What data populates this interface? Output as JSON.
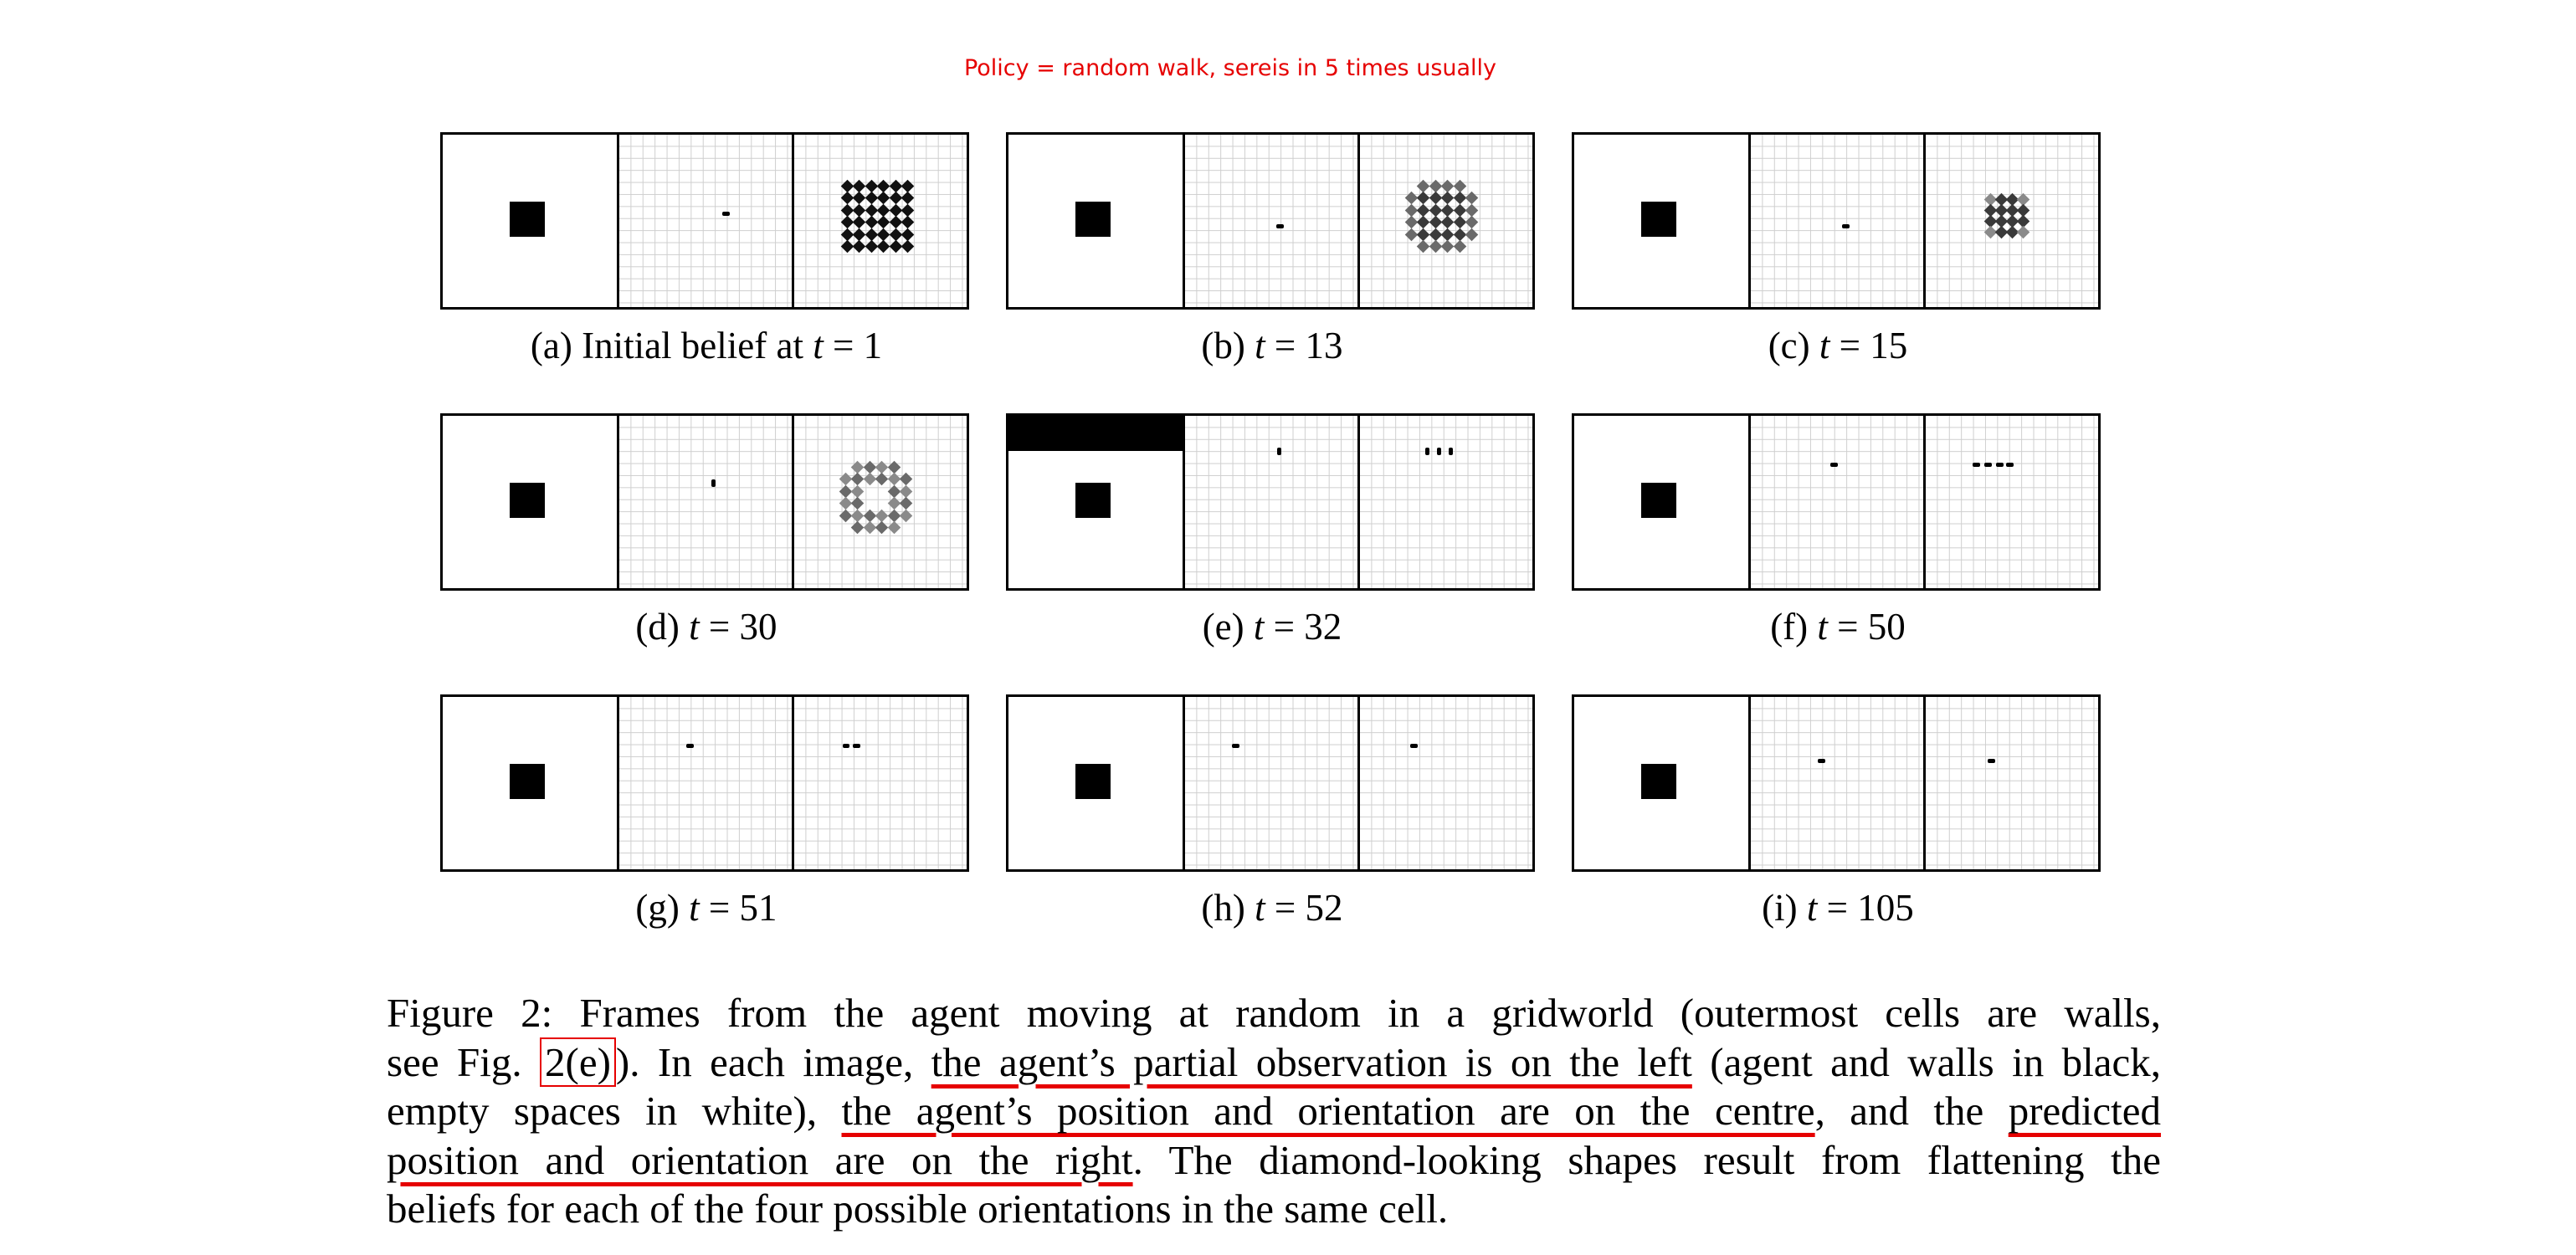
{
  "annotation": "Policy = random walk, sereis in 5 times usually",
  "panels": [
    {
      "label": "(a)",
      "text": "Initial belief at",
      "var": "t",
      "eq": " = 1"
    },
    {
      "label": "(b)",
      "text": "",
      "var": "t",
      "eq": " = 13"
    },
    {
      "label": "(c)",
      "text": "",
      "var": "t",
      "eq": " = 15"
    },
    {
      "label": "(d)",
      "text": "",
      "var": "t",
      "eq": " = 30"
    },
    {
      "label": "(e)",
      "text": "",
      "var": "t",
      "eq": " = 32"
    },
    {
      "label": "(f)",
      "text": "",
      "var": "t",
      "eq": " = 50"
    },
    {
      "label": "(g)",
      "text": "",
      "var": "t",
      "eq": " = 51"
    },
    {
      "label": "(h)",
      "text": "",
      "var": "t",
      "eq": " = 52"
    },
    {
      "label": "(i)",
      "text": "",
      "var": "t",
      "eq": " = 105"
    }
  ],
  "caption": {
    "l1": "Figure 2:   Frames from the agent moving at random in a gridworld (outermost cells are walls,",
    "l2a": "see Fig. ",
    "l2ref": "2(e)",
    "l2b": "). In each image, ",
    "l2ul": "the agent’s partial observation is on the left",
    "l2c": " (agent and walls in black,",
    "l3a": "empty spaces in white), ",
    "l3ul": "the agent’s position and orientation are on the centre",
    "l3b": ", and the ",
    "l3ul2": "predicted",
    "l4ul": "position and orientation are on the right",
    "l4b": ".  The diamond-looking shapes result from flattening the",
    "l5": "beliefs for each of the four possible orientations in the same cell."
  }
}
